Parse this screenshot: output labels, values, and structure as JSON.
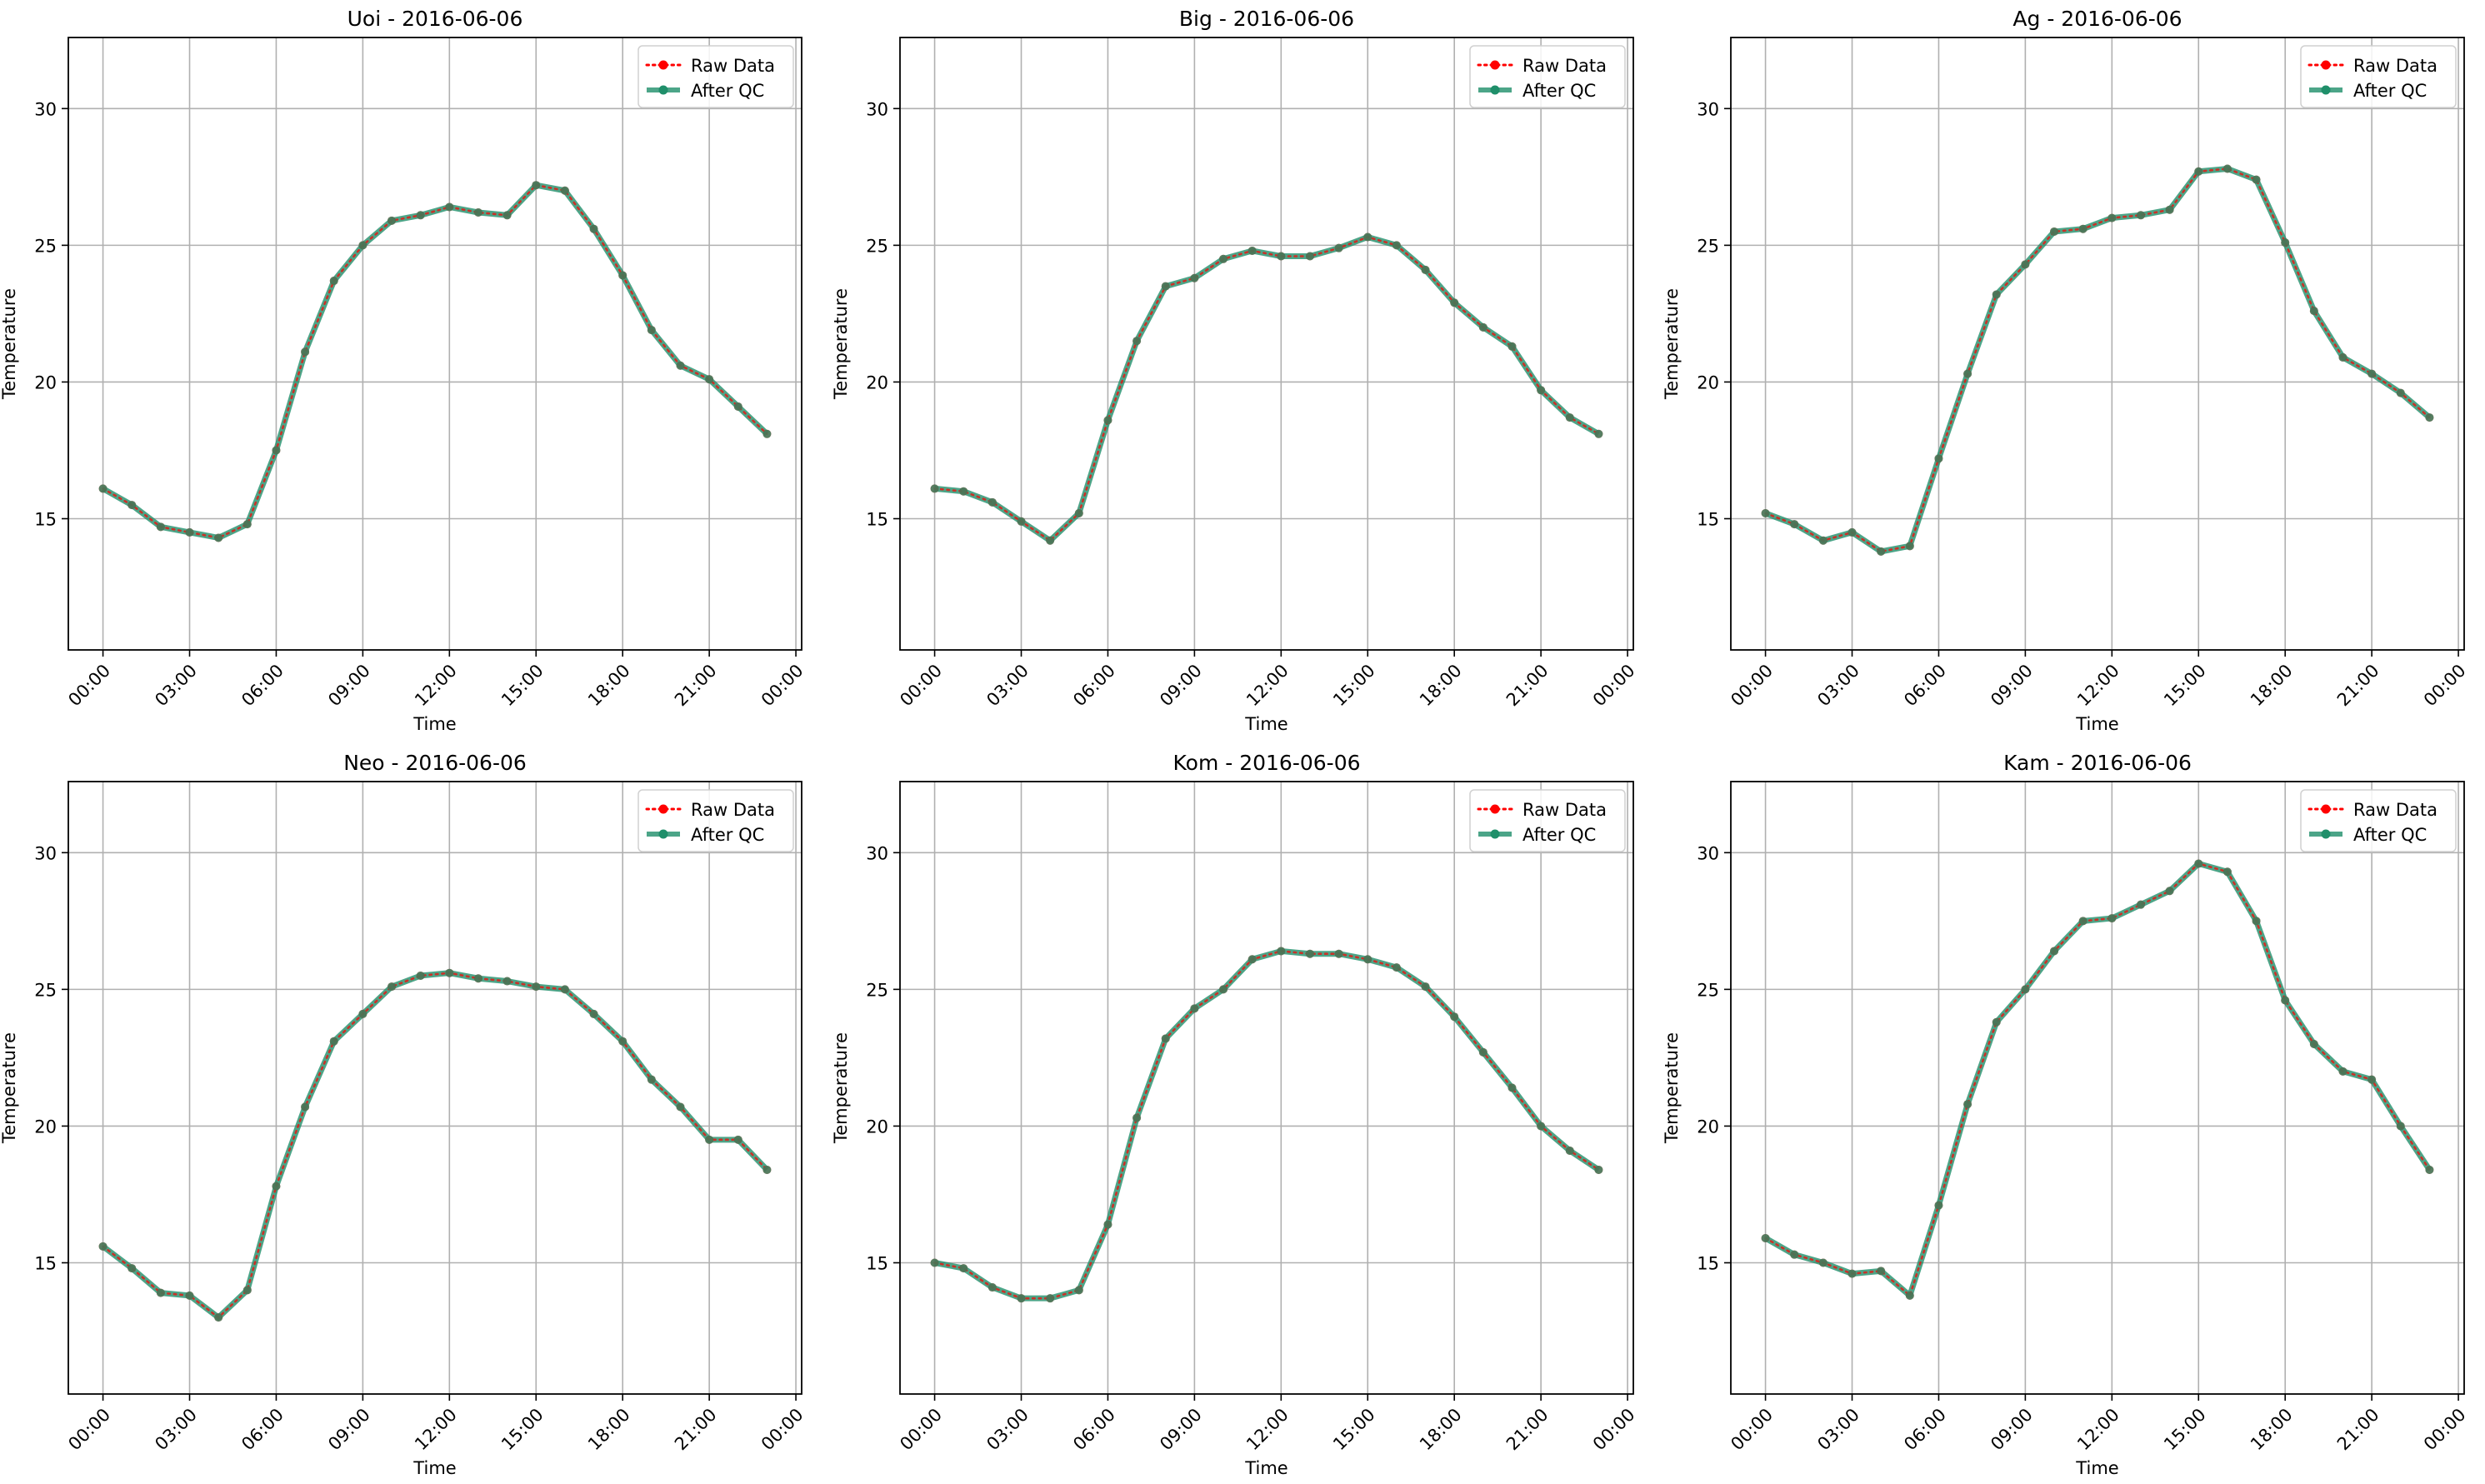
{
  "chart_data": [
    {
      "type": "line",
      "title": "Uoi - 2016-06-06",
      "xlabel": "Time",
      "ylabel": "Temperature",
      "x_ticks": [
        "00:00",
        "03:00",
        "06:00",
        "09:00",
        "12:00",
        "15:00",
        "18:00",
        "21:00",
        "00:00"
      ],
      "y_ticks": [
        15,
        20,
        25,
        30
      ],
      "ylim": [
        10.2,
        32.6
      ],
      "xlim_hours": [
        -1.2,
        24.2
      ],
      "grid": true,
      "legend_position": "top-right",
      "x_hours": [
        0,
        1,
        2,
        3,
        4,
        5,
        6,
        7,
        8,
        9,
        10,
        11,
        12,
        13,
        14,
        15,
        16,
        17,
        18,
        19,
        20,
        21,
        22,
        23
      ],
      "series": [
        {
          "name": "Raw Data",
          "values": [
            16.1,
            15.5,
            14.7,
            14.5,
            14.3,
            14.8,
            17.5,
            21.1,
            23.7,
            25.0,
            25.9,
            26.1,
            26.4,
            26.2,
            26.1,
            27.2,
            27.0,
            25.6,
            23.9,
            21.9,
            20.6,
            20.1,
            19.1,
            18.1
          ]
        },
        {
          "name": "After QC",
          "values": [
            16.1,
            15.5,
            14.7,
            14.5,
            14.3,
            14.8,
            17.5,
            21.1,
            23.7,
            25.0,
            25.9,
            26.1,
            26.4,
            26.2,
            26.1,
            27.2,
            27.0,
            25.6,
            23.9,
            21.9,
            20.6,
            20.1,
            19.1,
            18.1
          ]
        }
      ]
    },
    {
      "type": "line",
      "title": "Big - 2016-06-06",
      "xlabel": "Time",
      "ylabel": "Temperature",
      "x_ticks": [
        "00:00",
        "03:00",
        "06:00",
        "09:00",
        "12:00",
        "15:00",
        "18:00",
        "21:00",
        "00:00"
      ],
      "y_ticks": [
        15,
        20,
        25,
        30
      ],
      "ylim": [
        10.2,
        32.6
      ],
      "xlim_hours": [
        -1.2,
        24.2
      ],
      "grid": true,
      "legend_position": "top-right",
      "x_hours": [
        0,
        1,
        2,
        3,
        4,
        5,
        6,
        7,
        8,
        9,
        10,
        11,
        12,
        13,
        14,
        15,
        16,
        17,
        18,
        19,
        20,
        21,
        22,
        23
      ],
      "series": [
        {
          "name": "Raw Data",
          "values": [
            16.1,
            16.0,
            15.6,
            14.9,
            14.2,
            15.2,
            18.6,
            21.5,
            23.5,
            23.8,
            24.5,
            24.8,
            24.6,
            24.6,
            24.9,
            25.3,
            25.0,
            24.1,
            22.9,
            22.0,
            21.3,
            19.7,
            18.7,
            18.1
          ]
        },
        {
          "name": "After QC",
          "values": [
            16.1,
            16.0,
            15.6,
            14.9,
            14.2,
            15.2,
            18.6,
            21.5,
            23.5,
            23.8,
            24.5,
            24.8,
            24.6,
            24.6,
            24.9,
            25.3,
            25.0,
            24.1,
            22.9,
            22.0,
            21.3,
            19.7,
            18.7,
            18.1
          ]
        }
      ]
    },
    {
      "type": "line",
      "title": "Ag - 2016-06-06",
      "xlabel": "Time",
      "ylabel": "Temperature",
      "x_ticks": [
        "00:00",
        "03:00",
        "06:00",
        "09:00",
        "12:00",
        "15:00",
        "18:00",
        "21:00",
        "00:00"
      ],
      "y_ticks": [
        15,
        20,
        25,
        30
      ],
      "ylim": [
        10.2,
        32.6
      ],
      "xlim_hours": [
        -1.2,
        24.2
      ],
      "grid": true,
      "legend_position": "top-right",
      "x_hours": [
        0,
        1,
        2,
        3,
        4,
        5,
        6,
        7,
        8,
        9,
        10,
        11,
        12,
        13,
        14,
        15,
        16,
        17,
        18,
        19,
        20,
        21,
        22,
        23
      ],
      "series": [
        {
          "name": "Raw Data",
          "values": [
            15.2,
            14.8,
            14.2,
            14.5,
            13.8,
            14.0,
            17.2,
            20.3,
            23.2,
            24.3,
            25.5,
            25.6,
            26.0,
            26.1,
            26.3,
            27.7,
            27.8,
            27.4,
            25.1,
            22.6,
            20.9,
            20.3,
            19.6,
            18.7
          ]
        },
        {
          "name": "After QC",
          "values": [
            15.2,
            14.8,
            14.2,
            14.5,
            13.8,
            14.0,
            17.2,
            20.3,
            23.2,
            24.3,
            25.5,
            25.6,
            26.0,
            26.1,
            26.3,
            27.7,
            27.8,
            27.4,
            25.1,
            22.6,
            20.9,
            20.3,
            19.6,
            18.7
          ]
        }
      ]
    },
    {
      "type": "line",
      "title": "Neo - 2016-06-06",
      "xlabel": "Time",
      "ylabel": "Temperature",
      "x_ticks": [
        "00:00",
        "03:00",
        "06:00",
        "09:00",
        "12:00",
        "15:00",
        "18:00",
        "21:00",
        "00:00"
      ],
      "y_ticks": [
        15,
        20,
        25,
        30
      ],
      "ylim": [
        10.2,
        32.6
      ],
      "xlim_hours": [
        -1.2,
        24.2
      ],
      "grid": true,
      "legend_position": "top-right",
      "x_hours": [
        0,
        1,
        2,
        3,
        4,
        5,
        6,
        7,
        8,
        9,
        10,
        11,
        12,
        13,
        14,
        15,
        16,
        17,
        18,
        19,
        20,
        21,
        22,
        23
      ],
      "series": [
        {
          "name": "Raw Data",
          "values": [
            15.6,
            14.8,
            13.9,
            13.8,
            13.0,
            14.0,
            17.8,
            20.7,
            23.1,
            24.1,
            25.1,
            25.5,
            25.6,
            25.4,
            25.3,
            25.1,
            25.0,
            24.1,
            23.1,
            21.7,
            20.7,
            19.5,
            19.5,
            18.4
          ]
        },
        {
          "name": "After QC",
          "values": [
            15.6,
            14.8,
            13.9,
            13.8,
            13.0,
            14.0,
            17.8,
            20.7,
            23.1,
            24.1,
            25.1,
            25.5,
            25.6,
            25.4,
            25.3,
            25.1,
            25.0,
            24.1,
            23.1,
            21.7,
            20.7,
            19.5,
            19.5,
            18.4
          ]
        }
      ]
    },
    {
      "type": "line",
      "title": "Kom - 2016-06-06",
      "xlabel": "Time",
      "ylabel": "Temperature",
      "x_ticks": [
        "00:00",
        "03:00",
        "06:00",
        "09:00",
        "12:00",
        "15:00",
        "18:00",
        "21:00",
        "00:00"
      ],
      "y_ticks": [
        15,
        20,
        25,
        30
      ],
      "ylim": [
        10.2,
        32.6
      ],
      "xlim_hours": [
        -1.2,
        24.2
      ],
      "grid": true,
      "legend_position": "top-right",
      "x_hours": [
        0,
        1,
        2,
        3,
        4,
        5,
        6,
        7,
        8,
        9,
        10,
        11,
        12,
        13,
        14,
        15,
        16,
        17,
        18,
        19,
        20,
        21,
        22,
        23
      ],
      "series": [
        {
          "name": "Raw Data",
          "values": [
            15.0,
            14.8,
            14.1,
            13.7,
            13.7,
            14.0,
            16.4,
            20.3,
            23.2,
            24.3,
            25.0,
            26.1,
            26.4,
            26.3,
            26.3,
            26.1,
            25.8,
            25.1,
            24.0,
            22.7,
            21.4,
            20.0,
            19.1,
            18.4
          ]
        },
        {
          "name": "After QC",
          "values": [
            15.0,
            14.8,
            14.1,
            13.7,
            13.7,
            14.0,
            16.4,
            20.3,
            23.2,
            24.3,
            25.0,
            26.1,
            26.4,
            26.3,
            26.3,
            26.1,
            25.8,
            25.1,
            24.0,
            22.7,
            21.4,
            20.0,
            19.1,
            18.4
          ]
        }
      ]
    },
    {
      "type": "line",
      "title": "Kam - 2016-06-06",
      "xlabel": "Time",
      "ylabel": "Temperature",
      "x_ticks": [
        "00:00",
        "03:00",
        "06:00",
        "09:00",
        "12:00",
        "15:00",
        "18:00",
        "21:00",
        "00:00"
      ],
      "y_ticks": [
        15,
        20,
        25,
        30
      ],
      "ylim": [
        10.2,
        32.6
      ],
      "xlim_hours": [
        -1.2,
        24.2
      ],
      "grid": true,
      "legend_position": "top-right",
      "x_hours": [
        0,
        1,
        2,
        3,
        4,
        5,
        6,
        7,
        8,
        9,
        10,
        11,
        12,
        13,
        14,
        15,
        16,
        17,
        18,
        19,
        20,
        21,
        22,
        23
      ],
      "series": [
        {
          "name": "Raw Data",
          "values": [
            15.9,
            15.3,
            15.0,
            14.6,
            14.7,
            13.8,
            17.1,
            20.8,
            23.8,
            25.0,
            26.4,
            27.5,
            27.6,
            28.1,
            28.6,
            29.6,
            29.3,
            27.5,
            24.6,
            23.0,
            22.0,
            21.7,
            20.0,
            18.4
          ]
        },
        {
          "name": "After QC",
          "values": [
            15.9,
            15.3,
            15.0,
            14.6,
            14.7,
            13.8,
            17.1,
            20.8,
            23.8,
            25.0,
            26.4,
            27.5,
            27.6,
            28.1,
            28.6,
            29.6,
            29.3,
            27.5,
            24.6,
            23.0,
            22.0,
            21.7,
            20.0,
            18.4
          ]
        }
      ]
    }
  ],
  "colors": {
    "raw": "#ff0000",
    "qc": "#1f8f6a",
    "grid": "#b0b0b0",
    "axes": "#000000"
  }
}
